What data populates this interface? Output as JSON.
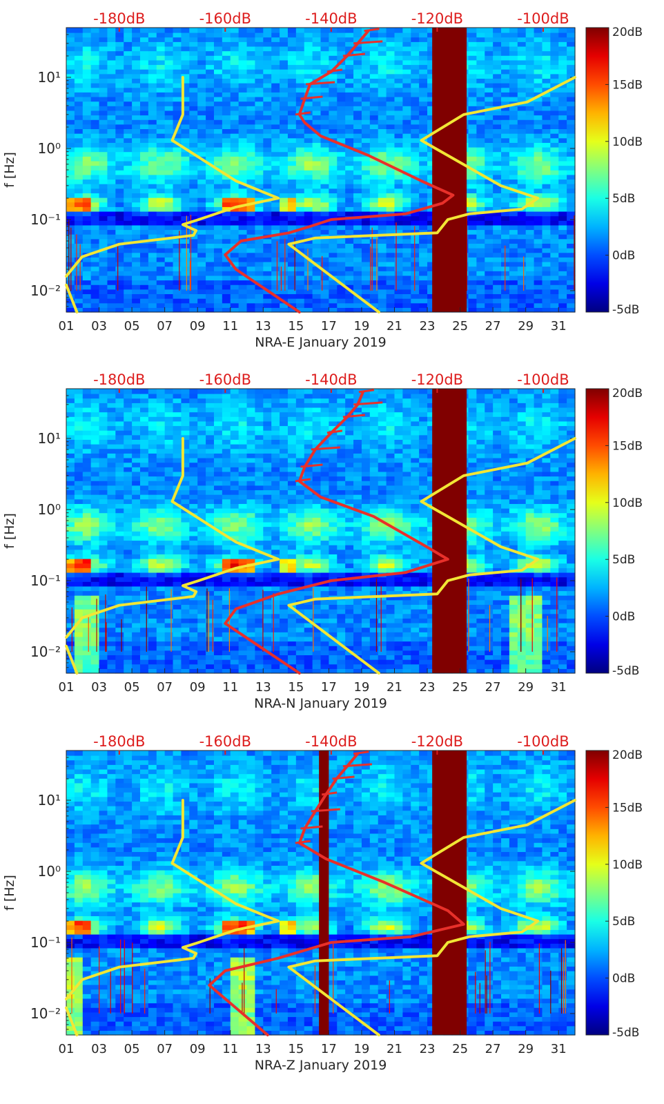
{
  "chart_data": [
    {
      "type": "heatmap",
      "station": "NRA-E",
      "xlabel": "NRA-E January 2019",
      "ylabel": "f [Hz]",
      "x_tick_labels": [
        "01",
        "03",
        "05",
        "07",
        "09",
        "11",
        "13",
        "15",
        "17",
        "19",
        "21",
        "23",
        "25",
        "27",
        "29",
        "31"
      ],
      "x_range_days": [
        1,
        32
      ],
      "y_scale": "log",
      "y_range_hz": [
        0.005,
        50
      ],
      "y_tick_labels": [
        "10⁻²",
        "10⁻¹",
        "10⁰",
        "10¹"
      ],
      "y_tick_values": [
        0.01,
        0.1,
        1,
        10
      ],
      "top_axis_labels": [
        "-180dB",
        "-160dB",
        "-140dB",
        "-120dB",
        "-100dB"
      ],
      "top_axis_values_db": [
        -180,
        -160,
        -140,
        -120,
        -100
      ],
      "top_axis_range_db": [
        -190,
        -94
      ],
      "colorbar": {
        "range_db": [
          -5,
          20
        ],
        "colormap": "jet",
        "tick_labels": [
          "20dB",
          "15dB",
          "10dB",
          "5dB",
          "0dB",
          "-5dB"
        ]
      },
      "gap_days": [
        [
          23.3,
          25.4
        ]
      ],
      "grid": false,
      "series": [
        {
          "role": "noise_model_low_high",
          "color": "#f2e635",
          "points": [
            [
              -190,
              0.016
            ],
            [
              -187,
              0.03
            ],
            [
              -180,
              0.045
            ],
            [
              -166,
              0.06
            ],
            [
              -165.5,
              0.07
            ],
            [
              -168,
              0.085
            ],
            [
              -165,
              0.1
            ],
            [
              -158,
              0.15
            ],
            [
              -150,
              0.2
            ],
            [
              -158,
              0.35
            ],
            [
              -170,
              1.3
            ],
            [
              -168,
              3
            ],
            [
              -168,
              10
            ]
          ]
        },
        {
          "role": "noise_model_low_high",
          "color": "#f2e635",
          "points": [
            [
              -188,
              0.005
            ],
            [
              -190,
              0.012
            ]
          ]
        },
        {
          "role": "noise_model_low_high",
          "color": "#f2e635",
          "points": [
            [
              -131,
              0.005
            ],
            [
              -148,
              0.045
            ],
            [
              -143,
              0.055
            ],
            [
              -120,
              0.065
            ],
            [
              -118,
              0.1
            ],
            [
              -114,
              0.12
            ],
            [
              -104,
              0.14
            ],
            [
              -101,
              0.2
            ],
            [
              -108,
              0.3
            ],
            [
              -123,
              1.3
            ],
            [
              -115,
              3
            ],
            [
              -103,
              4.5
            ],
            [
              -94,
              10
            ]
          ]
        },
        {
          "role": "psd_minimum",
          "color": "#e8302a",
          "points": [
            [
              -146,
              0.005
            ],
            [
              -158,
              0.02
            ],
            [
              -160,
              0.032
            ],
            [
              -157,
              0.05
            ],
            [
              -148,
              0.065
            ],
            [
              -144,
              0.08
            ],
            [
              -140,
              0.1
            ],
            [
              -126,
              0.12
            ],
            [
              -119,
              0.17
            ],
            [
              -117,
              0.22
            ],
            [
              -123,
              0.35
            ],
            [
              -133,
              0.8
            ],
            [
              -142,
              1.5
            ],
            [
              -145,
              2.3
            ],
            [
              -146,
              3
            ],
            [
              -145,
              5
            ],
            [
              -144,
              8
            ],
            [
              -140,
              12
            ],
            [
              -137,
              20
            ],
            [
              -135,
              30
            ],
            [
              -133,
              45
            ]
          ]
        }
      ]
    },
    {
      "type": "heatmap",
      "station": "NRA-N",
      "xlabel": "NRA-N January 2019",
      "ylabel": "f [Hz]",
      "x_tick_labels": [
        "01",
        "03",
        "05",
        "07",
        "09",
        "11",
        "13",
        "15",
        "17",
        "19",
        "21",
        "23",
        "25",
        "27",
        "29",
        "31"
      ],
      "x_range_days": [
        1,
        32
      ],
      "y_scale": "log",
      "y_range_hz": [
        0.005,
        50
      ],
      "y_tick_labels": [
        "10⁻²",
        "10⁻¹",
        "10⁰",
        "10¹"
      ],
      "y_tick_values": [
        0.01,
        0.1,
        1,
        10
      ],
      "top_axis_labels": [
        "-180dB",
        "-160dB",
        "-140dB",
        "-120dB",
        "-100dB"
      ],
      "top_axis_values_db": [
        -180,
        -160,
        -140,
        -120,
        -100
      ],
      "top_axis_range_db": [
        -190,
        -94
      ],
      "colorbar": {
        "range_db": [
          -5,
          20
        ],
        "colormap": "jet",
        "tick_labels": [
          "20dB",
          "15dB",
          "10dB",
          "5dB",
          "0dB",
          "-5dB"
        ]
      },
      "gap_days": [
        [
          23.3,
          25.4
        ]
      ],
      "grid": false,
      "series": [
        {
          "role": "noise_model_low_high",
          "color": "#f2e635",
          "points": [
            [
              -190,
              0.016
            ],
            [
              -187,
              0.03
            ],
            [
              -180,
              0.045
            ],
            [
              -166,
              0.06
            ],
            [
              -165.5,
              0.07
            ],
            [
              -168,
              0.085
            ],
            [
              -165,
              0.1
            ],
            [
              -158,
              0.15
            ],
            [
              -150,
              0.2
            ],
            [
              -158,
              0.35
            ],
            [
              -170,
              1.3
            ],
            [
              -168,
              3
            ],
            [
              -168,
              10
            ]
          ]
        },
        {
          "role": "noise_model_low_high",
          "color": "#f2e635",
          "points": [
            [
              -188,
              0.005
            ],
            [
              -190,
              0.012
            ]
          ]
        },
        {
          "role": "noise_model_low_high",
          "color": "#f2e635",
          "points": [
            [
              -131,
              0.005
            ],
            [
              -148,
              0.045
            ],
            [
              -143,
              0.055
            ],
            [
              -120,
              0.065
            ],
            [
              -118,
              0.1
            ],
            [
              -114,
              0.12
            ],
            [
              -104,
              0.14
            ],
            [
              -101,
              0.2
            ],
            [
              -108,
              0.3
            ],
            [
              -123,
              1.3
            ],
            [
              -115,
              3
            ],
            [
              -103,
              4.5
            ],
            [
              -94,
              10
            ]
          ]
        },
        {
          "role": "psd_minimum",
          "color": "#e8302a",
          "points": [
            [
              -146,
              0.005
            ],
            [
              -160,
              0.025
            ],
            [
              -158,
              0.04
            ],
            [
              -150,
              0.065
            ],
            [
              -140,
              0.1
            ],
            [
              -126,
              0.13
            ],
            [
              -118,
              0.2
            ],
            [
              -122,
              0.3
            ],
            [
              -132,
              0.8
            ],
            [
              -142,
              1.5
            ],
            [
              -146,
              2.5
            ],
            [
              -145,
              4
            ],
            [
              -143,
              7
            ],
            [
              -140,
              12
            ],
            [
              -137,
              20
            ],
            [
              -135,
              30
            ],
            [
              -134,
              45
            ]
          ]
        }
      ]
    },
    {
      "type": "heatmap",
      "station": "NRA-Z",
      "xlabel": "NRA-Z January 2019",
      "ylabel": "f [Hz]",
      "x_tick_labels": [
        "01",
        "03",
        "05",
        "07",
        "09",
        "11",
        "13",
        "15",
        "17",
        "19",
        "21",
        "23",
        "25",
        "27",
        "29",
        "31"
      ],
      "x_range_days": [
        1,
        32
      ],
      "y_scale": "log",
      "y_range_hz": [
        0.005,
        50
      ],
      "y_tick_labels": [
        "10⁻²",
        "10⁻¹",
        "10⁰",
        "10¹"
      ],
      "y_tick_values": [
        0.01,
        0.1,
        1,
        10
      ],
      "top_axis_labels": [
        "-180dB",
        "-160dB",
        "-140dB",
        "-120dB",
        "-100dB"
      ],
      "top_axis_values_db": [
        -180,
        -160,
        -140,
        -120,
        -100
      ],
      "top_axis_range_db": [
        -190,
        -94
      ],
      "colorbar": {
        "range_db": [
          -5,
          20
        ],
        "colormap": "jet",
        "tick_labels": [
          "20dB",
          "15dB",
          "10dB",
          "5dB",
          "0dB",
          "-5dB"
        ]
      },
      "gap_days": [
        [
          16.4,
          17.0
        ],
        [
          23.3,
          25.4
        ]
      ],
      "grid": false,
      "series": [
        {
          "role": "noise_model_low_high",
          "color": "#f2e635",
          "points": [
            [
              -190,
              0.016
            ],
            [
              -187,
              0.03
            ],
            [
              -180,
              0.045
            ],
            [
              -166,
              0.06
            ],
            [
              -165.5,
              0.07
            ],
            [
              -168,
              0.085
            ],
            [
              -165,
              0.1
            ],
            [
              -158,
              0.15
            ],
            [
              -150,
              0.2
            ],
            [
              -158,
              0.35
            ],
            [
              -170,
              1.3
            ],
            [
              -168,
              3
            ],
            [
              -168,
              10
            ]
          ]
        },
        {
          "role": "noise_model_low_high",
          "color": "#f2e635",
          "points": [
            [
              -188,
              0.005
            ],
            [
              -190,
              0.012
            ]
          ]
        },
        {
          "role": "noise_model_low_high",
          "color": "#f2e635",
          "points": [
            [
              -131,
              0.005
            ],
            [
              -148,
              0.045
            ],
            [
              -143,
              0.055
            ],
            [
              -120,
              0.065
            ],
            [
              -118,
              0.1
            ],
            [
              -114,
              0.12
            ],
            [
              -104,
              0.14
            ],
            [
              -101,
              0.2
            ],
            [
              -108,
              0.3
            ],
            [
              -123,
              1.3
            ],
            [
              -115,
              3
            ],
            [
              -103,
              4.5
            ],
            [
              -94,
              10
            ]
          ]
        },
        {
          "role": "psd_minimum",
          "color": "#e8302a",
          "points": [
            [
              -152,
              0.005
            ],
            [
              -163,
              0.025
            ],
            [
              -160,
              0.04
            ],
            [
              -150,
              0.06
            ],
            [
              -140,
              0.1
            ],
            [
              -125,
              0.12
            ],
            [
              -115,
              0.18
            ],
            [
              -118,
              0.28
            ],
            [
              -130,
              0.7
            ],
            [
              -141,
              1.5
            ],
            [
              -146,
              2.5
            ],
            [
              -145,
              4
            ],
            [
              -143,
              7
            ],
            [
              -141,
              12
            ],
            [
              -139,
              20
            ],
            [
              -137,
              30
            ],
            [
              -135,
              45
            ]
          ]
        }
      ]
    }
  ]
}
